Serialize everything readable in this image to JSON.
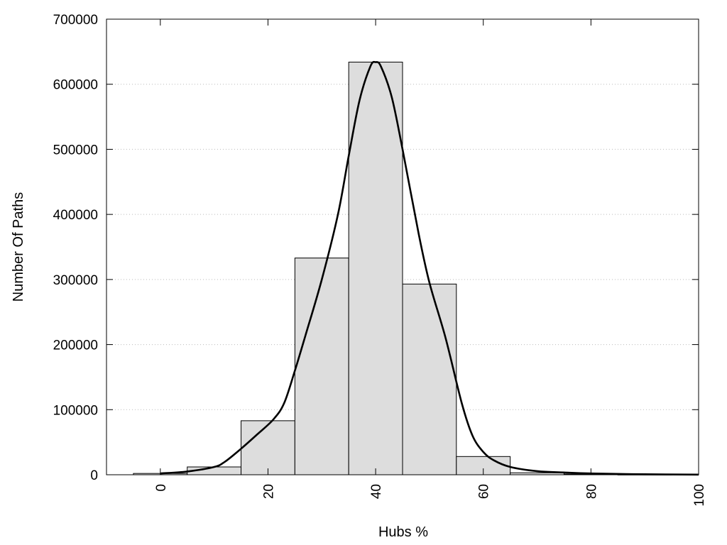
{
  "chart_data": {
    "type": "bar",
    "xlabel": "Hubs %",
    "ylabel": "Number Of Paths",
    "xlim": [
      -10,
      100
    ],
    "ylim": [
      0,
      700000
    ],
    "x_ticks": [
      0,
      20,
      40,
      60,
      80,
      100
    ],
    "y_ticks": [
      0,
      100000,
      200000,
      300000,
      400000,
      500000,
      600000,
      700000
    ],
    "y_grid": true,
    "bin_width": 10,
    "bins": [
      {
        "center": 0,
        "value": 2000
      },
      {
        "center": 10,
        "value": 12000
      },
      {
        "center": 20,
        "value": 83000
      },
      {
        "center": 30,
        "value": 333000
      },
      {
        "center": 40,
        "value": 634000
      },
      {
        "center": 50,
        "value": 293000
      },
      {
        "center": 60,
        "value": 28000
      },
      {
        "center": 70,
        "value": 3000
      },
      {
        "center": 80,
        "value": 1000
      },
      {
        "center": 90,
        "value": 200
      }
    ],
    "bar_color": "#dddddd",
    "curve": {
      "type": "line",
      "color": "#000000",
      "points": [
        [
          0,
          2000
        ],
        [
          5,
          5000
        ],
        [
          10,
          12000
        ],
        [
          12,
          20000
        ],
        [
          15,
          40000
        ],
        [
          18,
          62000
        ],
        [
          21,
          85000
        ],
        [
          23,
          110000
        ],
        [
          25,
          160000
        ],
        [
          27,
          215000
        ],
        [
          30,
          300000
        ],
        [
          33,
          400000
        ],
        [
          35,
          490000
        ],
        [
          37,
          575000
        ],
        [
          39,
          627000
        ],
        [
          40,
          634000
        ],
        [
          41,
          627000
        ],
        [
          43,
          580000
        ],
        [
          45,
          500000
        ],
        [
          48,
          370000
        ],
        [
          50,
          295000
        ],
        [
          53,
          210000
        ],
        [
          56,
          110000
        ],
        [
          58,
          60000
        ],
        [
          60,
          35000
        ],
        [
          62,
          22000
        ],
        [
          65,
          12000
        ],
        [
          70,
          5500
        ],
        [
          75,
          3500
        ],
        [
          80,
          2000
        ],
        [
          90,
          700
        ],
        [
          100,
          200
        ]
      ]
    }
  }
}
